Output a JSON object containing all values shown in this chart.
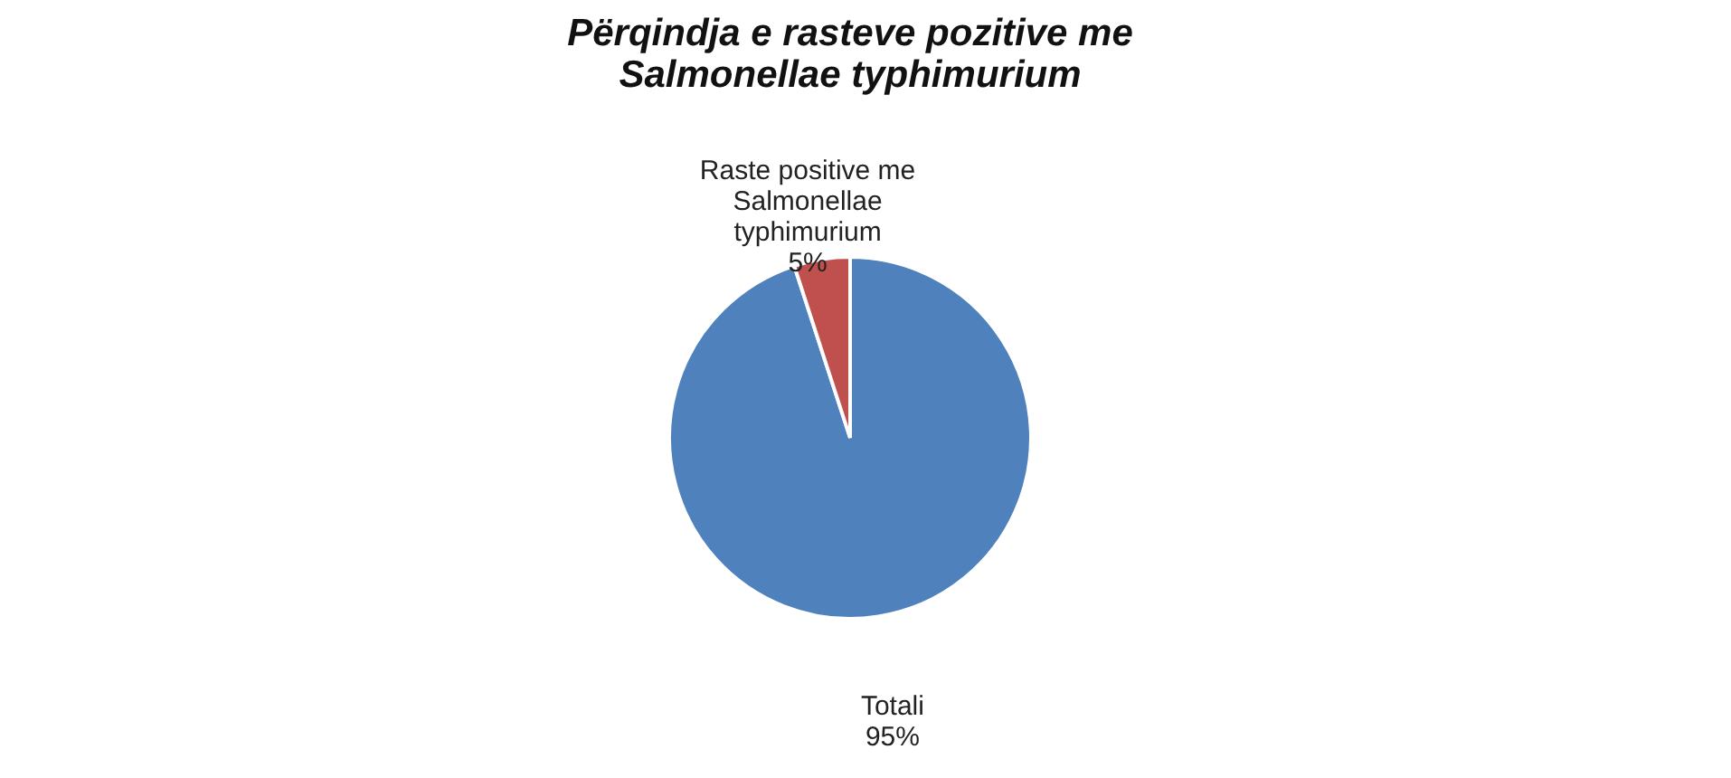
{
  "chart_data": {
    "type": "pie",
    "title": "Përqindja e rasteve pozitive me Salmonellae typhimurium",
    "categories": [
      "Totali",
      "Raste positive me Salmonellae typhimurium"
    ],
    "values": [
      95,
      5
    ],
    "colors": [
      "#4f81bd",
      "#c0504d"
    ],
    "value_labels": [
      "95%",
      "5%"
    ],
    "legend": false
  }
}
